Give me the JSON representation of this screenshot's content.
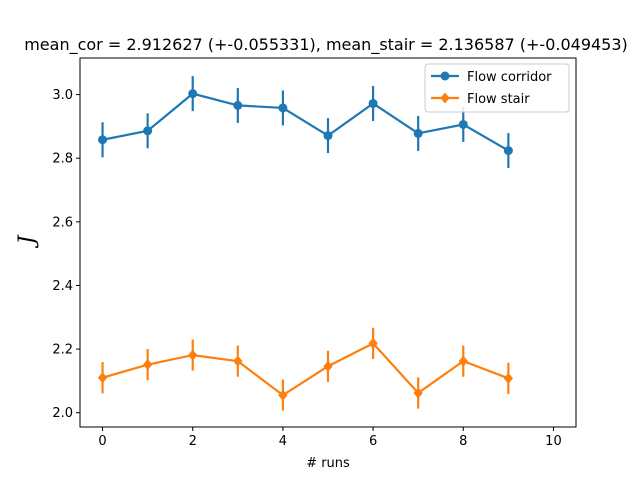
{
  "chart_data": {
    "type": "line",
    "title": "mean_cor = 2.912627 (+-0.055331), mean_stair = 2.136587 (+-0.049453)",
    "xlabel": "# runs",
    "ylabel": "J",
    "xlim": [
      -0.5,
      10.5
    ],
    "ylim": [
      1.955,
      3.115
    ],
    "xticks": [
      0,
      2,
      4,
      6,
      8,
      10
    ],
    "yticks": [
      2.0,
      2.2,
      2.4,
      2.6,
      2.8,
      3.0
    ],
    "grid": false,
    "legend_position": "top-right",
    "x": [
      0,
      1,
      2,
      3,
      4,
      5,
      6,
      7,
      8,
      9
    ],
    "series": [
      {
        "name": "Flow corridor",
        "color": "#1f77b4",
        "marker": "circle",
        "values": [
          2.858,
          2.886,
          3.003,
          2.966,
          2.958,
          2.871,
          2.972,
          2.878,
          2.906,
          2.824
        ],
        "errors": [
          0.055,
          0.055,
          0.055,
          0.055,
          0.055,
          0.055,
          0.055,
          0.055,
          0.055,
          0.055
        ]
      },
      {
        "name": "Flow stair",
        "color": "#ff7f0e",
        "marker": "diamond",
        "values": [
          2.11,
          2.151,
          2.181,
          2.162,
          2.055,
          2.146,
          2.218,
          2.062,
          2.162,
          2.108
        ],
        "errors": [
          0.049,
          0.049,
          0.049,
          0.049,
          0.049,
          0.049,
          0.049,
          0.049,
          0.049,
          0.049
        ]
      }
    ]
  }
}
